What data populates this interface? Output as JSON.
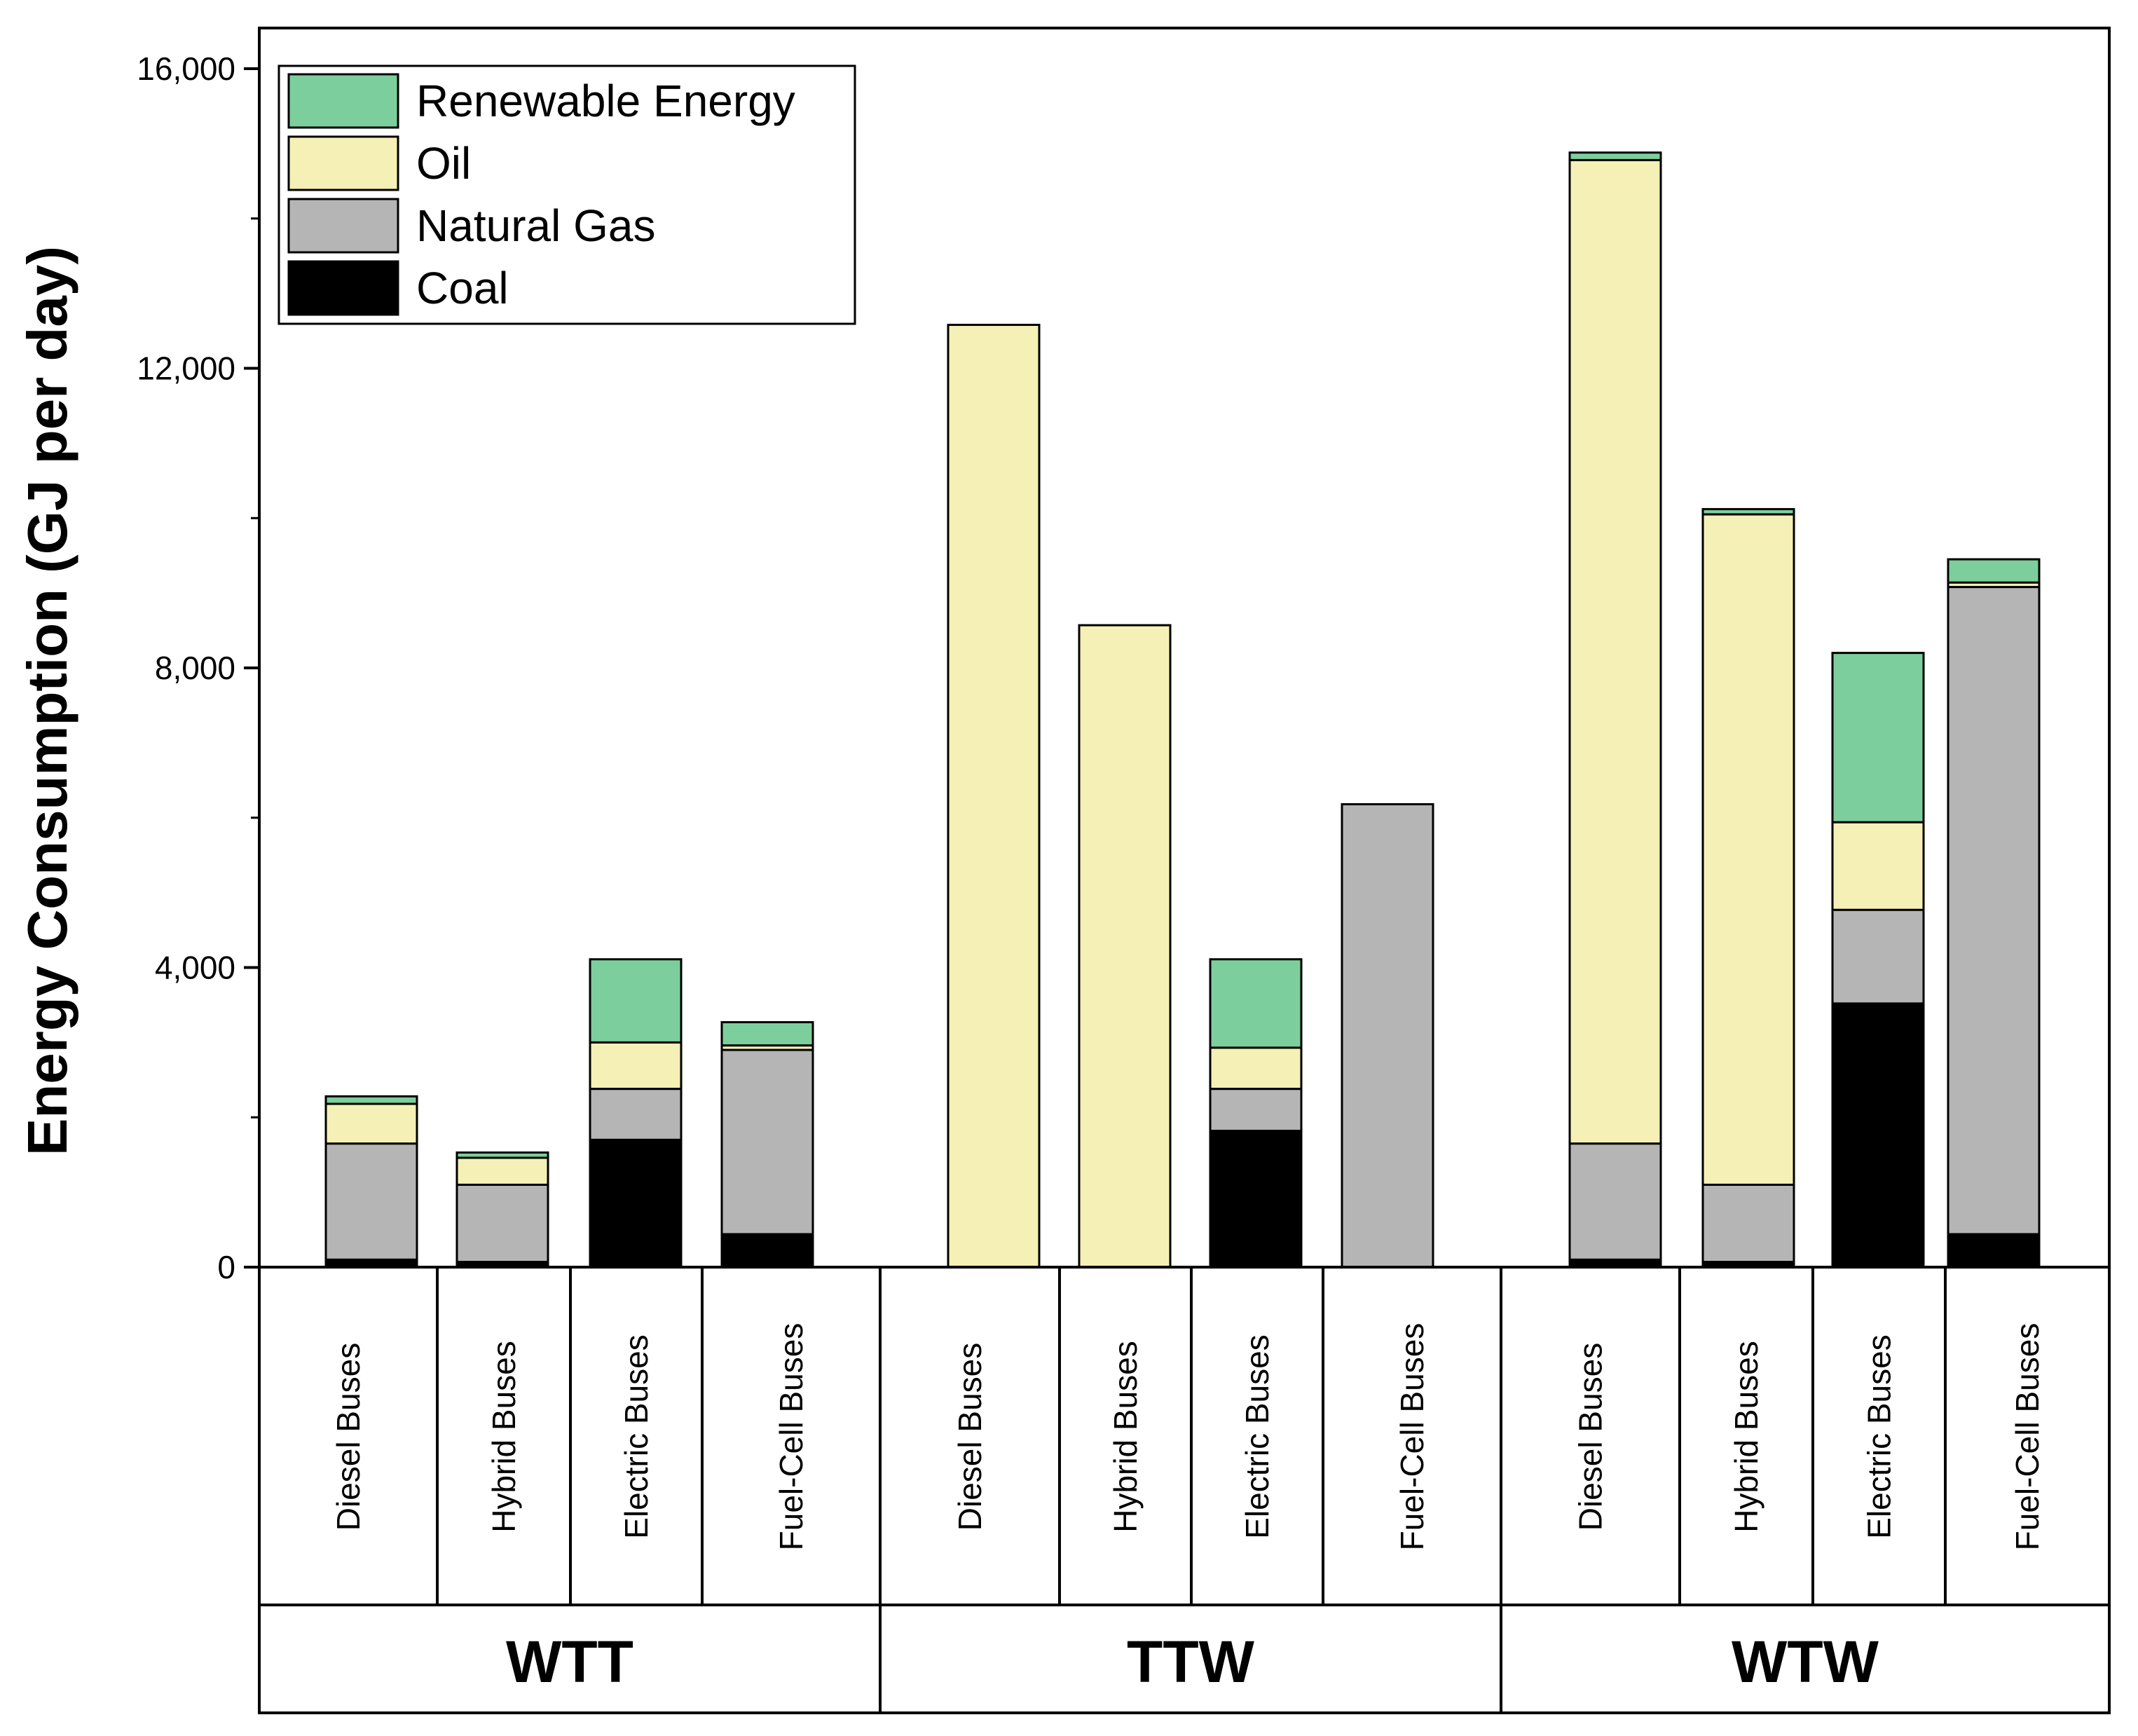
{
  "chart_data": {
    "type": "bar",
    "stacked": true,
    "ylabel": "Energy Consumption (GJ per day)",
    "ylim": [
      0,
      16500
    ],
    "yticks": [
      0,
      4000,
      8000,
      12000,
      16000
    ],
    "ytick_labels": [
      "0",
      "4,000",
      "8,000",
      "12,000",
      "16,000"
    ],
    "legend_position": "top-left",
    "series": [
      {
        "name": "Coal",
        "color": "#000000"
      },
      {
        "name": "Natural Gas",
        "color": "#b5b5b5"
      },
      {
        "name": "Oil",
        "color": "#f5f0b5"
      },
      {
        "name": "Renewable Energy",
        "color": "#7ccf9c"
      }
    ],
    "legend_order": [
      "Renewable Energy",
      "Oil",
      "Natural Gas",
      "Coal"
    ],
    "groups": [
      {
        "label": "WTT",
        "bars": [
          {
            "category": "Diesel Buses",
            "values": [
              100,
              1550,
              530,
              100
            ]
          },
          {
            "category": "Hybrid Buses",
            "values": [
              70,
              1030,
              360,
              70
            ]
          },
          {
            "category": "Electric Buses",
            "values": [
              1700,
              680,
              620,
              1110
            ]
          },
          {
            "category": "Fuel-Cell Buses",
            "values": [
              440,
              2460,
              60,
              310
            ]
          }
        ]
      },
      {
        "label": "TTW",
        "bars": [
          {
            "category": "Diesel Buses",
            "values": [
              0,
              0,
              12580,
              0
            ]
          },
          {
            "category": "Hybrid Buses",
            "values": [
              0,
              0,
              8570,
              0
            ]
          },
          {
            "category": "Electric Buses",
            "values": [
              1820,
              560,
              550,
              1180
            ]
          },
          {
            "category": "Fuel-Cell Buses",
            "values": [
              0,
              6180,
              0,
              0
            ]
          }
        ]
      },
      {
        "label": "WTW",
        "bars": [
          {
            "category": "Diesel Buses",
            "values": [
              100,
              1550,
              13130,
              100
            ]
          },
          {
            "category": "Hybrid Buses",
            "values": [
              70,
              1030,
              8950,
              70
            ]
          },
          {
            "category": "Electric Buses",
            "values": [
              3520,
              1250,
              1170,
              2260
            ]
          },
          {
            "category": "Fuel-Cell Buses",
            "values": [
              440,
              8640,
              60,
              310
            ]
          }
        ]
      }
    ]
  }
}
